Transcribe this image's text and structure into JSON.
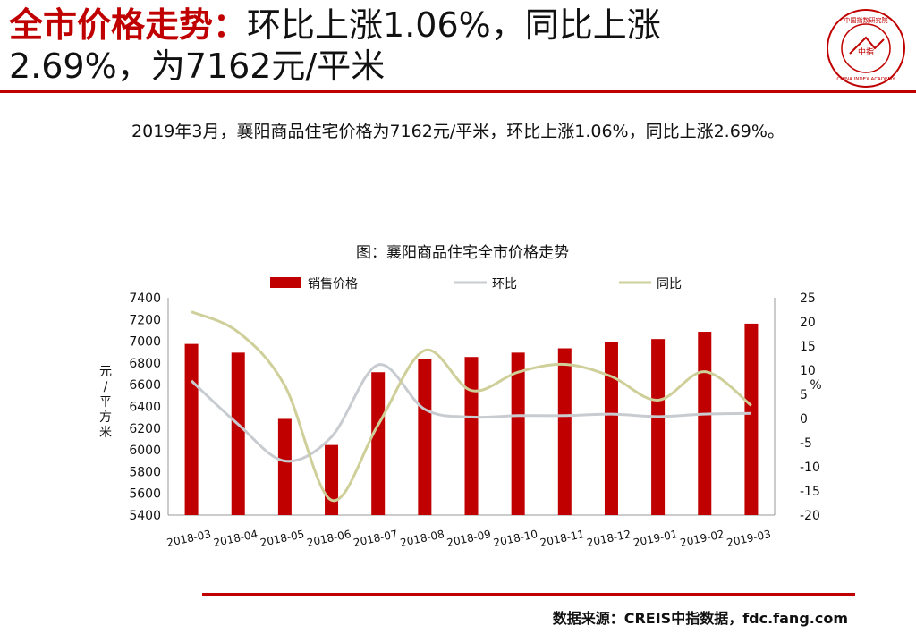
{
  "header": {
    "title_red": "全市价格走势：",
    "title_rest_line1": "环比上涨1.06%，同比上涨",
    "title_line2": "2.69%，为7162元/平米",
    "logo_text": "中指",
    "logo_ring_text": "CHINA INDEX ACADEMY",
    "logo_top_text": "中国指数研究院"
  },
  "subtitle": "2019年3月，襄阳商品住宅价格为7162元/平米，环比上涨1.06%，同比上涨2.69%。",
  "source": "数据来源：CREIS中指数据，fdc.fang.com",
  "colors": {
    "accent": "#c00000",
    "bar": "#c00000",
    "mom_line": "#c8ccd0",
    "yoy_line": "#cfcf9a"
  },
  "chart_data": {
    "type": "bar",
    "title": "图：襄阳商品住宅全市价格走势",
    "categories": [
      "2018-03",
      "2018-04",
      "2018-05",
      "2018-06",
      "2018-07",
      "2018-08",
      "2018-09",
      "2018-10",
      "2018-11",
      "2018-12",
      "2019-01",
      "2019-02",
      "2019-03"
    ],
    "series": [
      {
        "name": "销售价格",
        "type": "bar",
        "axis": "left",
        "values": [
          6975,
          6895,
          6285,
          6045,
          6715,
          6835,
          6855,
          6895,
          6935,
          6995,
          7020,
          7087,
          7162
        ]
      },
      {
        "name": "环比",
        "type": "line",
        "axis": "right",
        "values": [
          7.8,
          -1.2,
          -8.8,
          -3.8,
          11.1,
          1.9,
          0.3,
          0.6,
          0.6,
          0.9,
          0.4,
          0.9,
          1.06
        ]
      },
      {
        "name": "同比",
        "type": "line",
        "axis": "right",
        "values": [
          22.1,
          17.9,
          6.8,
          -16.9,
          -1.3,
          14.1,
          5.8,
          9.6,
          11.2,
          8.7,
          3.8,
          9.7,
          2.69
        ]
      }
    ],
    "ylabel": "元/平方米",
    "ylim": [
      5400,
      7400
    ],
    "yticks": [
      5400,
      5600,
      5800,
      6000,
      6200,
      6400,
      6600,
      6800,
      7000,
      7200,
      7400
    ],
    "y2label": "%",
    "y2lim": [
      -20,
      25
    ],
    "y2ticks": [
      -20,
      -15,
      -10,
      -5,
      0,
      5,
      10,
      15,
      20,
      25
    ],
    "legend_position": "top",
    "grid": false
  }
}
